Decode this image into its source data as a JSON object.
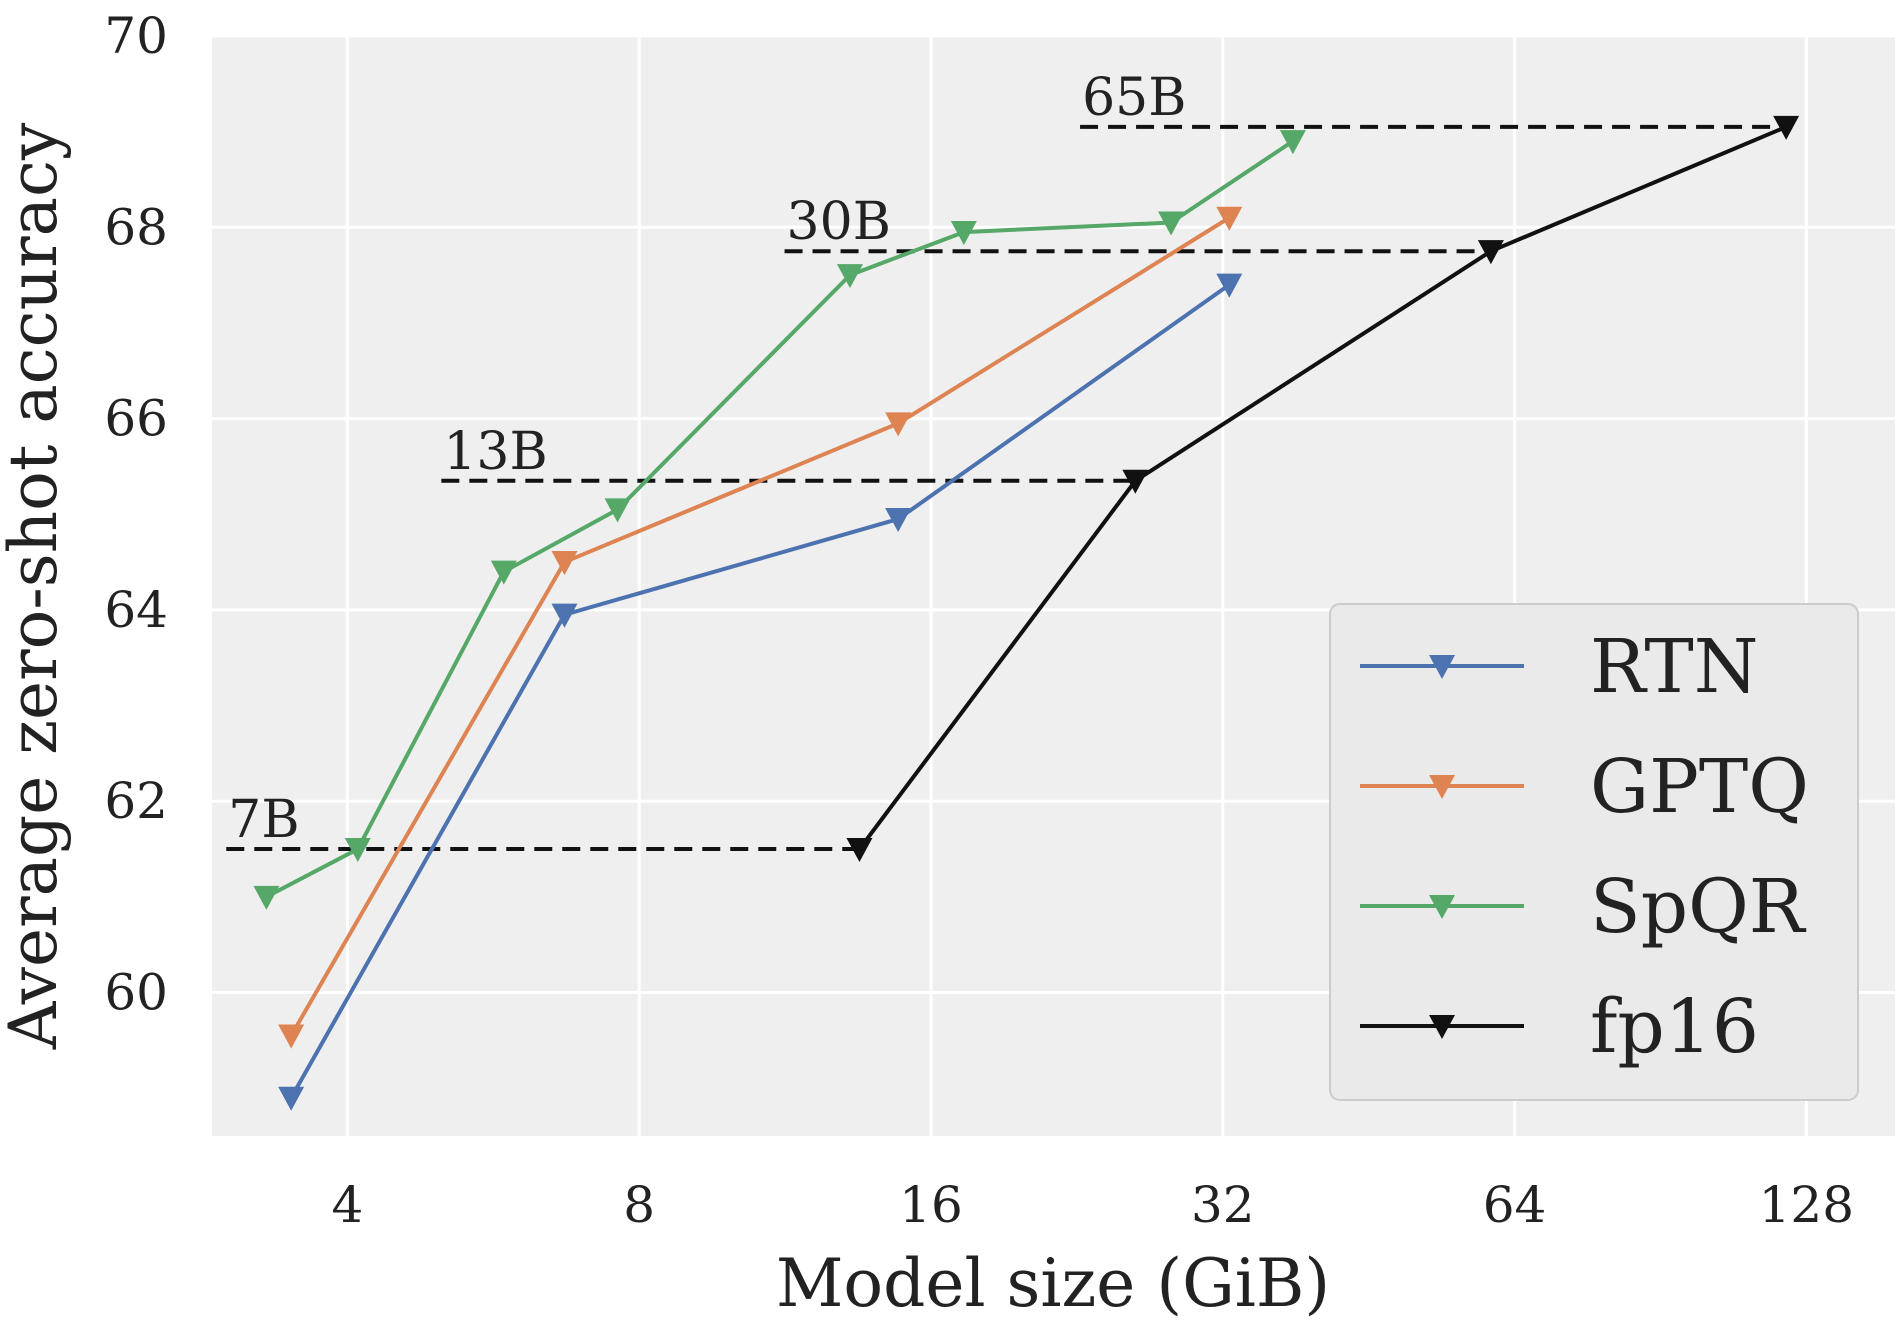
{
  "chart_data": {
    "type": "line",
    "title": "",
    "xlabel": "Model size (GiB)",
    "ylabel": "Average zero-shot accuracy",
    "x_scale": "log2",
    "xlim": [
      2.9,
      158
    ],
    "ylim": [
      58.5,
      70
    ],
    "x_ticks": [
      4,
      8,
      16,
      32,
      64,
      128
    ],
    "x_tick_labels": [
      "4",
      "8",
      "16",
      "32",
      "64",
      "128"
    ],
    "y_ticks": [
      60,
      62,
      64,
      66,
      68,
      70
    ],
    "y_tick_labels": [
      "60",
      "62",
      "64",
      "66",
      "68",
      "70"
    ],
    "grid": true,
    "legend_position": "lower-right",
    "series": [
      {
        "name": "RTN",
        "color": "#4c72b0",
        "x": [
          3.5,
          6.7,
          14.8,
          32.5
        ],
        "y": [
          58.9,
          63.95,
          64.95,
          67.4
        ]
      },
      {
        "name": "GPTQ",
        "color": "#dd8452",
        "x": [
          3.5,
          6.7,
          14.8,
          32.5
        ],
        "y": [
          59.55,
          64.5,
          65.95,
          68.1
        ]
      },
      {
        "name": "SpQR",
        "color": "#55a868",
        "x": [
          3.3,
          4.1,
          5.8,
          7.6,
          13.2,
          17.3,
          28.3,
          37.8
        ],
        "y": [
          61.0,
          61.5,
          64.4,
          65.05,
          67.5,
          67.95,
          68.05,
          68.9
        ]
      },
      {
        "name": "fp16",
        "color": "#111111",
        "x": [
          13.5,
          26.0,
          60.5,
          122.0
        ],
        "y": [
          61.5,
          65.35,
          67.75,
          69.05
        ]
      }
    ],
    "model_size_markers": [
      {
        "label": "7B",
        "y": 61.5,
        "x_start": 3.0,
        "x_end": 13.5
      },
      {
        "label": "13B",
        "y": 65.35,
        "x_start": 5.0,
        "x_end": 26.0
      },
      {
        "label": "30B",
        "y": 67.75,
        "x_start": 11.3,
        "x_end": 60.5
      },
      {
        "label": "65B",
        "y": 69.05,
        "x_start": 22.8,
        "x_end": 122.0
      }
    ]
  }
}
